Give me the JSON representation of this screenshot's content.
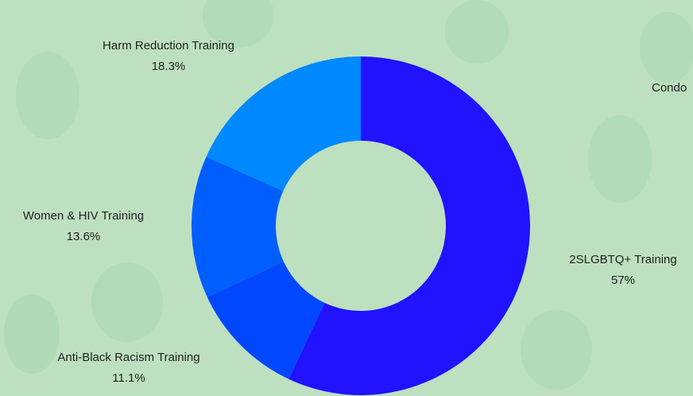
{
  "chart_data": {
    "type": "donut",
    "categories": [
      "2SLGBTQ+ Training",
      "Anti-Black Racism Training",
      "Women & HIV Training",
      "Harm Reduction Training",
      "Condo"
    ],
    "values": [
      57,
      11.1,
      13.6,
      18.3,
      0
    ],
    "value_labels": [
      "57%",
      "11.1%",
      "13.6%",
      "18.3%",
      null
    ],
    "colors": [
      "#2112ff",
      "#0048ff",
      "#005eff",
      "#0088ff",
      "#00a0ff"
    ]
  }
}
